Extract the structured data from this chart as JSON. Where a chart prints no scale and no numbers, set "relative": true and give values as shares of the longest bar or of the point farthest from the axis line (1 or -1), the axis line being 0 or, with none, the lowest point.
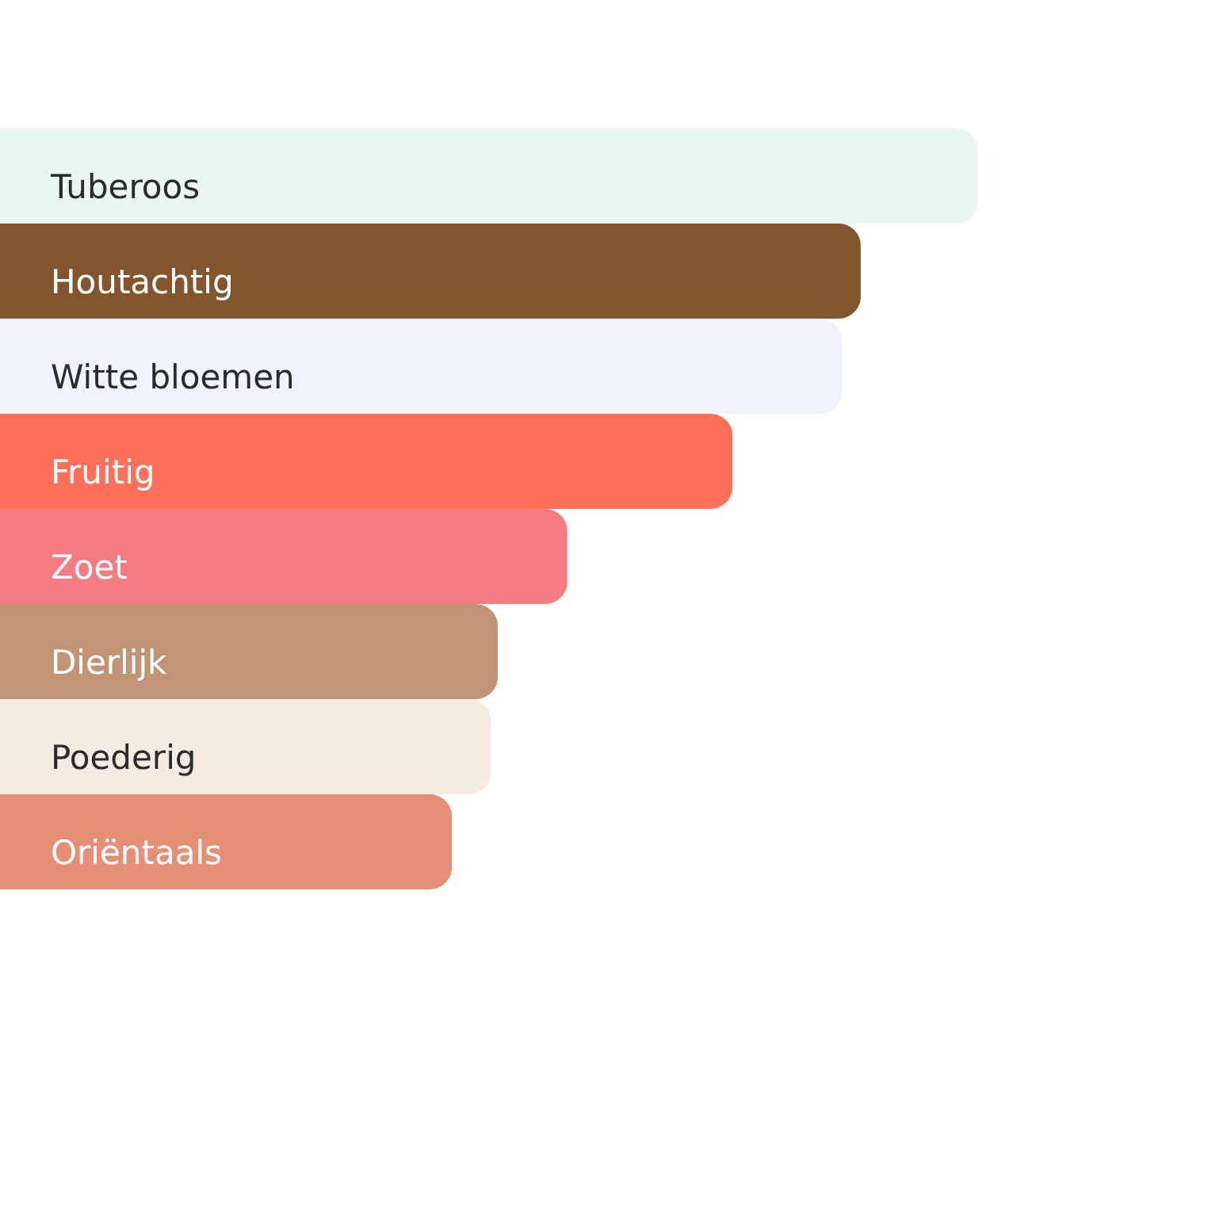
{
  "chart_data": {
    "type": "bar",
    "orientation": "horizontal",
    "relative": true,
    "categories": [
      "Tuberoos",
      "Houtachtig",
      "Witte bloemen",
      "Fruitig",
      "Zoet",
      "Dierlijk",
      "Poederig",
      "Oriëntaals"
    ],
    "values": [
      1,
      0.88,
      0.861,
      0.749,
      0.58,
      0.509,
      0.502,
      0.462
    ],
    "colors": [
      "#e8f8f1",
      "#83552d",
      "#eef3fc",
      "#ff705a",
      "#f47b82",
      "#c09474",
      "#f5ebe1",
      "#e48f76"
    ]
  }
}
